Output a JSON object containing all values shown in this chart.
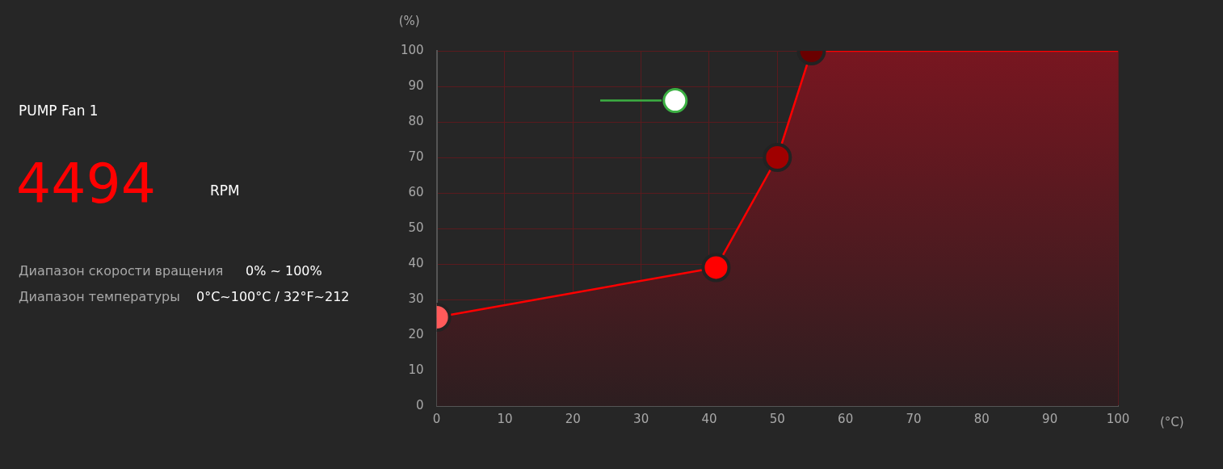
{
  "chart_data": {
    "type": "area",
    "xlabel": "(°C)",
    "ylabel": "(%)",
    "annotations": [
      "PUMP Fan 1",
      "4494",
      "RPM",
      "Диапазон скорости вращения",
      "0% ~ 100%",
      "Диапазон температуры",
      "0°C~100°C / 32°F~212"
    ],
    "xlim": [
      0,
      100
    ],
    "xticks": [
      0,
      10,
      20,
      30,
      40,
      50,
      60,
      70,
      80,
      90,
      100
    ],
    "ylim": [
      0,
      100
    ],
    "yticks": [
      0,
      10,
      20,
      30,
      40,
      50,
      60,
      70,
      80,
      90,
      100
    ],
    "grid": true,
    "marker": "circle",
    "legend": false,
    "series": [
      {
        "type": "area",
        "color": "#ff0000",
        "x": [
          0,
          41,
          50,
          55,
          100
        ],
        "values": [
          25,
          39,
          70,
          100,
          100
        ],
        "colors": [
          "#ff5a5a",
          "#ff0000",
          "#a00000",
          "#6a0000",
          null
        ]
      },
      {
        "type": "line",
        "color": "#3cb043",
        "x": [
          24,
          33
        ],
        "values": [
          86,
          86
        ],
        "marker": "none"
      },
      {
        "type": "scatter",
        "color": "#ffffff",
        "x": [
          35
        ],
        "values": [
          86
        ]
      }
    ]
  }
}
